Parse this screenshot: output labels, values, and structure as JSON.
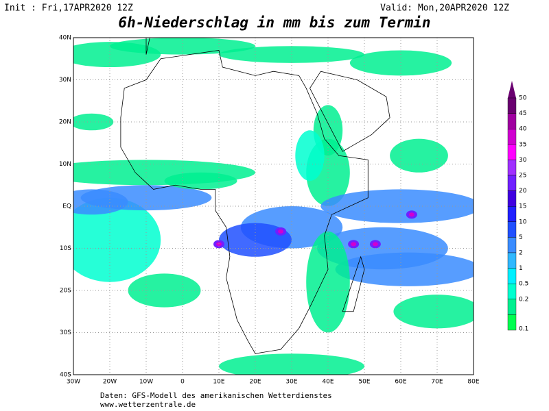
{
  "header": {
    "init": "Init : Fri,17APR2020 12Z",
    "valid": "Valid: Mon,20APR2020 12Z",
    "title": "6h-Niederschlag in mm bis zum Termin"
  },
  "map": {
    "lat_labels": [
      "40N",
      "30N",
      "20N",
      "10N",
      "EQ",
      "10S",
      "20S",
      "30S",
      "40S"
    ],
    "lon_labels": [
      "30W",
      "20W",
      "10W",
      "0",
      "10E",
      "20E",
      "30E",
      "40E",
      "50E",
      "60E",
      "70E",
      "80E"
    ]
  },
  "legend": {
    "labels": [
      "50",
      "45",
      "40",
      "35",
      "30",
      "25",
      "20",
      "15",
      "10",
      "5",
      "2",
      "1",
      "0.5",
      "0.2",
      "0.1"
    ]
  },
  "footer": {
    "source": "Daten: GFS-Modell des amerikanischen Wetterdienstes",
    "url": "www.wetterzentrale.de"
  }
}
